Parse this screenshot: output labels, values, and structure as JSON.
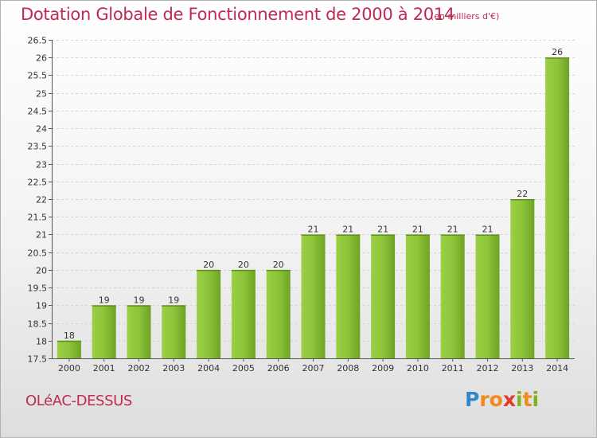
{
  "header": {
    "title": "Dotation Globale de Fonctionnement de 2000 à 2014",
    "unit": "(en milliers d'€)"
  },
  "footer": {
    "commune": "OLéAC-DESSUS",
    "logo": "Proxiti",
    "logo_letters": [
      {
        "ch": "P",
        "color": "#2f86c8"
      },
      {
        "ch": "r",
        "color": "#f08a1c"
      },
      {
        "ch": "o",
        "color": "#f08a1c"
      },
      {
        "ch": "x",
        "color": "#e23a2a"
      },
      {
        "ch": "i",
        "color": "#7ab520"
      },
      {
        "ch": "t",
        "color": "#f08a1c"
      },
      {
        "ch": "i",
        "color": "#7ab520"
      }
    ]
  },
  "chart_data": {
    "type": "bar",
    "title": "Dotation Globale de Fonctionnement de 2000 à 2014",
    "subtitle": "(en milliers d'€)",
    "categories": [
      "2000",
      "2001",
      "2002",
      "2003",
      "2004",
      "2005",
      "2006",
      "2007",
      "2008",
      "2009",
      "2010",
      "2011",
      "2012",
      "2013",
      "2014"
    ],
    "values": [
      18,
      19,
      19,
      19,
      20,
      20,
      20,
      21,
      21,
      21,
      21,
      21,
      21,
      22,
      26
    ],
    "ylim": [
      17.5,
      26.5
    ],
    "yticks": [
      "17.5",
      "18",
      "18.5",
      "19",
      "19.5",
      "20",
      "20.5",
      "21",
      "21.5",
      "22",
      "22.5",
      "23",
      "23.5",
      "24",
      "24.5",
      "25",
      "25.5",
      "26",
      "26.5"
    ],
    "grid": true,
    "bar_color": "#7ab52a",
    "bar_color_light": "#a6d84e"
  }
}
